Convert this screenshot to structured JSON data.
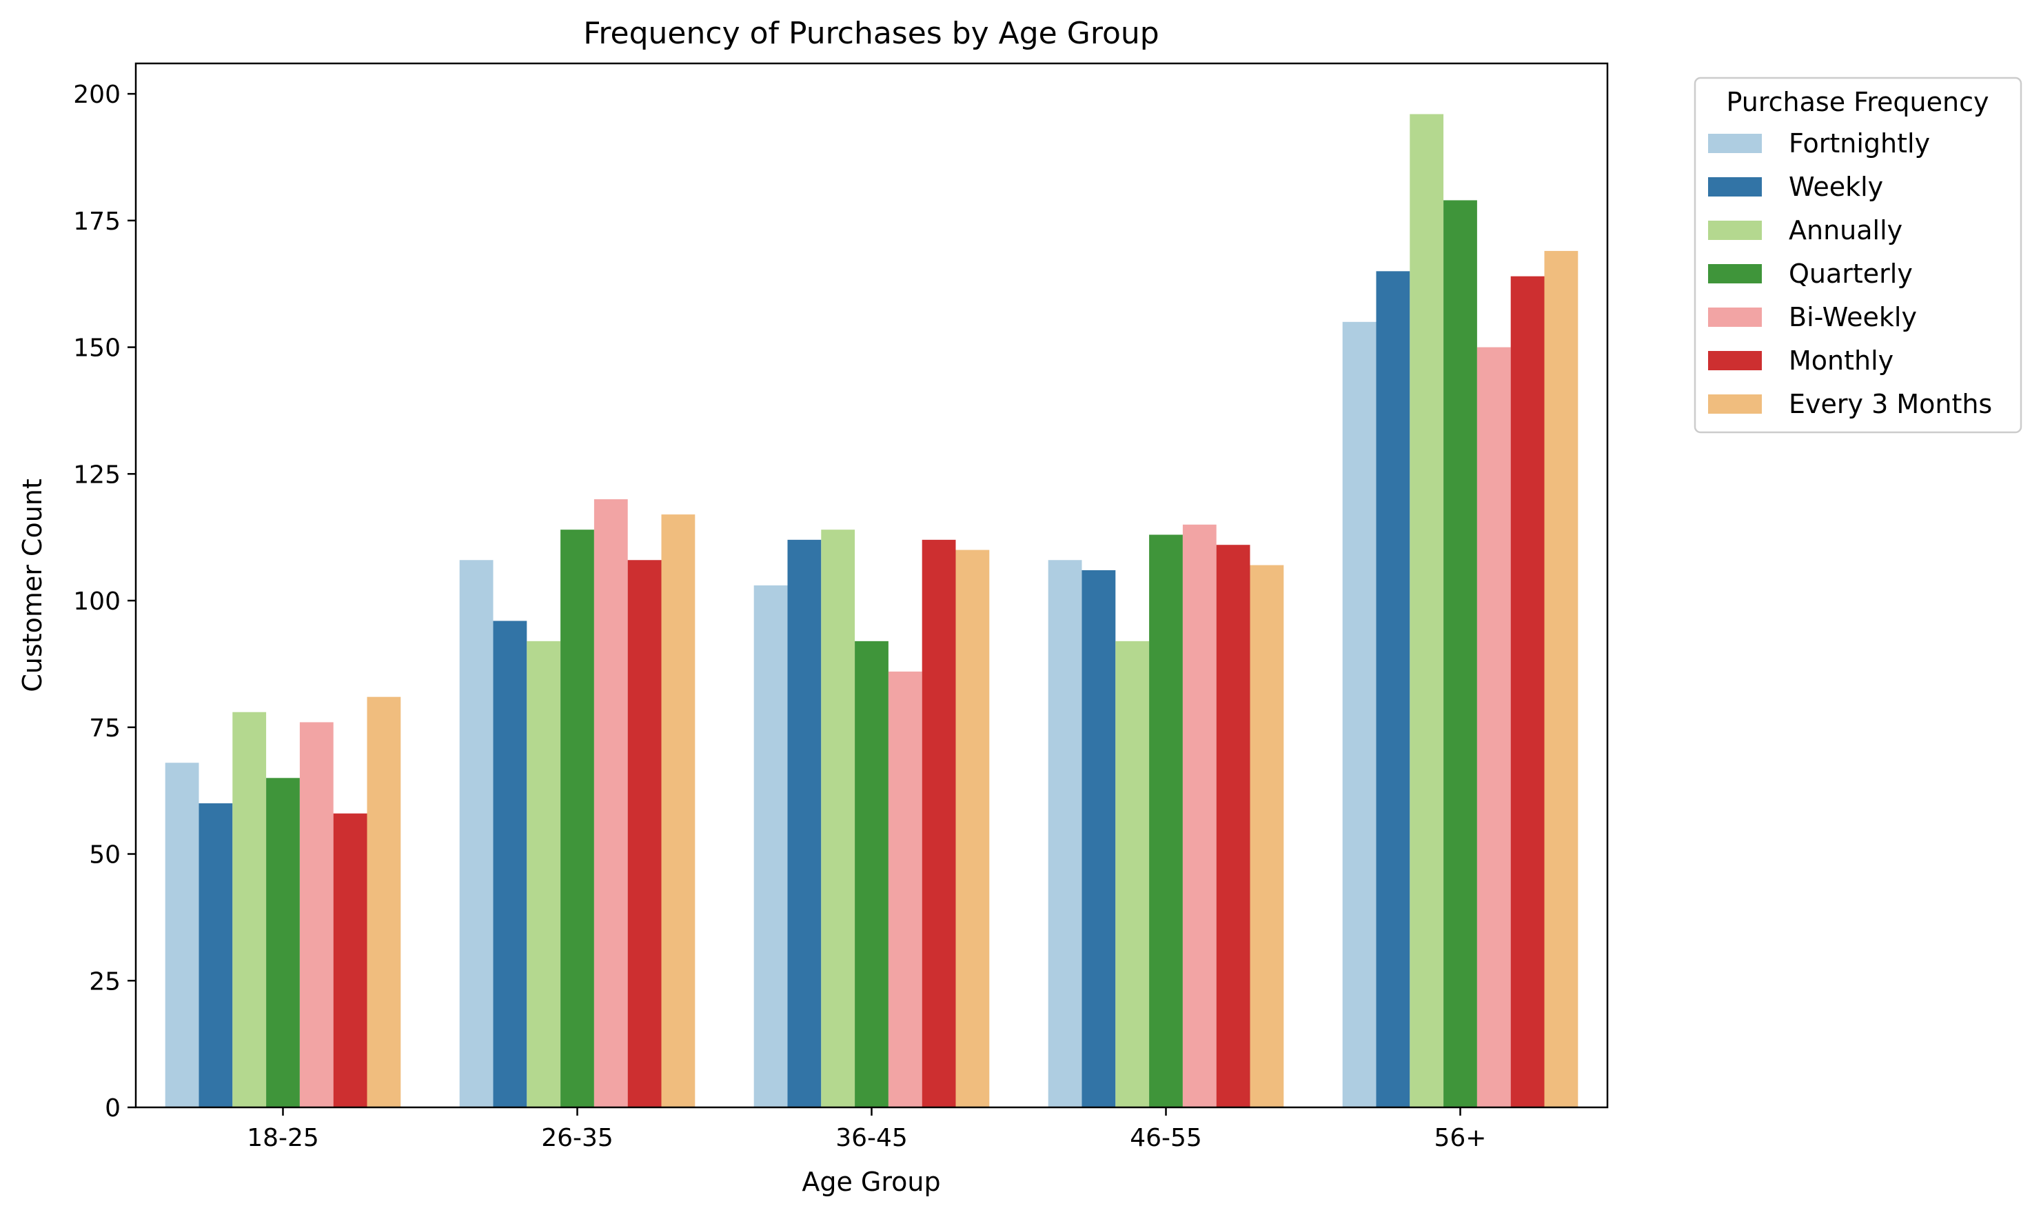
{
  "chart_data": {
    "type": "bar",
    "title": "Frequency of Purchases by Age Group",
    "xlabel": "Age Group",
    "ylabel": "Customer Count",
    "ylim": [
      0,
      206
    ],
    "yticks": [
      0,
      25,
      50,
      75,
      100,
      125,
      150,
      175,
      200
    ],
    "grid": false,
    "legend": {
      "title": "Purchase Frequency",
      "placement": "outside-top-right"
    },
    "categories": [
      "18-25",
      "26-35",
      "36-45",
      "46-55",
      "56+"
    ],
    "series": [
      {
        "name": "Fortnightly",
        "color": "#aecde1",
        "values": [
          68,
          108,
          103,
          108,
          155
        ]
      },
      {
        "name": "Weekly",
        "color": "#3274a6",
        "values": [
          60,
          96,
          112,
          106,
          165
        ]
      },
      {
        "name": "Annually",
        "color": "#b4d88f",
        "values": [
          78,
          92,
          114,
          92,
          196
        ]
      },
      {
        "name": "Quarterly",
        "color": "#3f953a",
        "values": [
          65,
          114,
          92,
          113,
          179
        ]
      },
      {
        "name": "Bi-Weekly",
        "color": "#f2a4a4",
        "values": [
          76,
          120,
          86,
          115,
          150
        ]
      },
      {
        "name": "Monthly",
        "color": "#cd2f30",
        "values": [
          58,
          108,
          112,
          111,
          164
        ]
      },
      {
        "name": "Every 3 Months",
        "color": "#f0bd7e",
        "values": [
          81,
          117,
          110,
          107,
          169
        ]
      }
    ]
  }
}
